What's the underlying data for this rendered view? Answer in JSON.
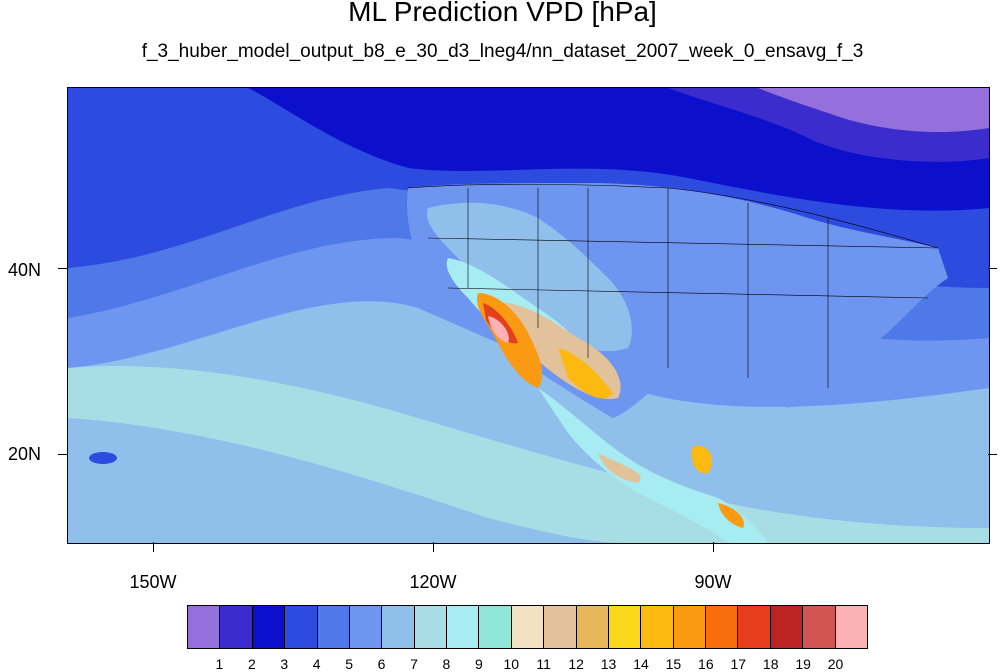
{
  "title": "ML Prediction VPD [hPa]",
  "subtitle": "f_3_huber_model_output_b8_e_30_d3_lneg4/nn_dataset_2007_week_0_ensavg_f_3",
  "axes": {
    "lat_labels": [
      "40N",
      "20N"
    ],
    "lon_labels": [
      "150W",
      "120W",
      "90W"
    ]
  },
  "colorbar": {
    "colors": [
      "#9370db",
      "#3a2ccd",
      "#0c10cc",
      "#2d4bde",
      "#4f78e8",
      "#6e95ef",
      "#8fbfea",
      "#a8dde6",
      "#a6ecf2",
      "#90e6d8",
      "#f2e2c1",
      "#e2c29a",
      "#e8b75c",
      "#fbd81b",
      "#fcba10",
      "#fa9a12",
      "#f96e0c",
      "#e63d1c",
      "#bd2323",
      "#d45454",
      "#fbb2b4"
    ],
    "labels": [
      "1",
      "2",
      "3",
      "4",
      "5",
      "6",
      "7",
      "8",
      "9",
      "10",
      "11",
      "12",
      "13",
      "14",
      "15",
      "16",
      "17",
      "18",
      "19",
      "20"
    ]
  }
}
